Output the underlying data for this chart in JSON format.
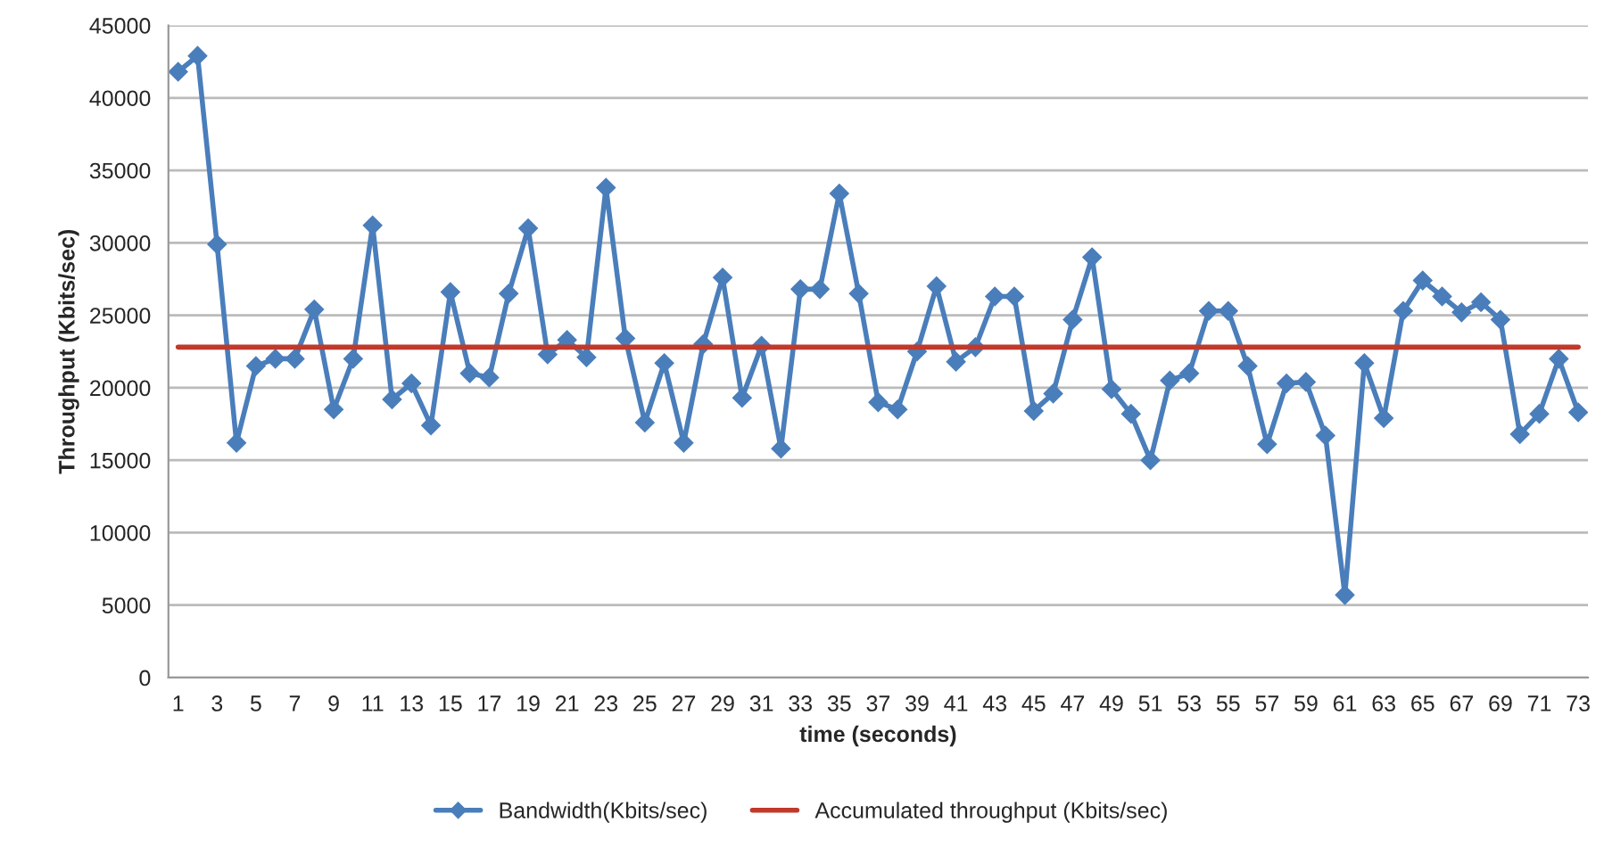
{
  "chart_data": {
    "type": "line",
    "xlabel": "time (seconds)",
    "ylabel": "Throughput (Kbits/sec)",
    "x": [
      1,
      2,
      3,
      4,
      5,
      6,
      7,
      8,
      9,
      10,
      11,
      12,
      13,
      14,
      15,
      16,
      17,
      18,
      19,
      20,
      21,
      22,
      23,
      24,
      25,
      26,
      27,
      28,
      29,
      30,
      31,
      32,
      33,
      34,
      35,
      36,
      37,
      38,
      39,
      40,
      41,
      42,
      43,
      44,
      45,
      46,
      47,
      48,
      49,
      50,
      51,
      52,
      53,
      54,
      55,
      56,
      57,
      58,
      59,
      60,
      61,
      62,
      63,
      64,
      65,
      66,
      67,
      68,
      69,
      70,
      71,
      72,
      73
    ],
    "series": [
      {
        "name": "Bandwidth(Kbits/sec)",
        "color": "#4a7ebb",
        "marker": "diamond",
        "values": [
          41800,
          42900,
          29900,
          16200,
          21500,
          22000,
          22000,
          25400,
          18500,
          22000,
          31200,
          19200,
          20300,
          17400,
          26600,
          21000,
          20700,
          26500,
          31000,
          22300,
          23300,
          22100,
          33800,
          23400,
          17600,
          21700,
          16200,
          23000,
          27600,
          19300,
          22900,
          15800,
          26800,
          26800,
          33400,
          26500,
          19000,
          18500,
          22500,
          27000,
          21800,
          22800,
          26300,
          26300,
          18400,
          19600,
          24700,
          29000,
          19900,
          18200,
          15000,
          20500,
          21000,
          25300,
          25300,
          21500,
          16100,
          20300,
          20400,
          16700,
          5700,
          21700,
          17900,
          25300,
          27400,
          26300,
          25200,
          25900,
          24700,
          16800,
          18200,
          22000,
          18300
        ]
      },
      {
        "name": "Accumulated throughput (Kbits/sec)",
        "color": "#c0392b",
        "marker": "none",
        "x": [
          1,
          73
        ],
        "values": [
          22800,
          22800
        ]
      }
    ],
    "xlim": [
      0.5,
      73.5
    ],
    "xticks": [
      1,
      3,
      5,
      7,
      9,
      11,
      13,
      15,
      17,
      19,
      21,
      23,
      25,
      27,
      29,
      31,
      33,
      35,
      37,
      39,
      41,
      43,
      45,
      47,
      49,
      51,
      53,
      55,
      57,
      59,
      61,
      63,
      65,
      67,
      69,
      71,
      73
    ],
    "ylim": [
      0,
      45000
    ],
    "yticks": [
      0,
      5000,
      10000,
      15000,
      20000,
      25000,
      30000,
      35000,
      40000,
      45000
    ],
    "grid": "y",
    "legend": "bottom",
    "line_style": "solid"
  }
}
